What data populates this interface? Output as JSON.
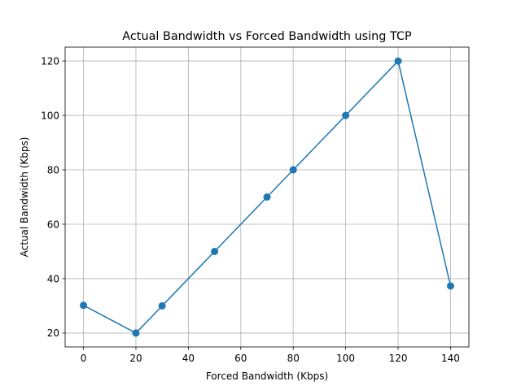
{
  "chart_data": {
    "type": "line",
    "title": "Actual Bandwidth vs Forced Bandwidth using TCP",
    "xlabel": "Forced Bandwidth (Kbps)",
    "ylabel": "Actual Bandwidth (Kbps)",
    "xlim": [
      -7,
      147
    ],
    "ylim": [
      14.9,
      125.1
    ],
    "xticks": [
      0,
      20,
      40,
      60,
      80,
      100,
      120,
      140
    ],
    "yticks": [
      20,
      40,
      60,
      80,
      100,
      120
    ],
    "grid": true,
    "marker": "circle",
    "series": [
      {
        "color": "#1f77b4",
        "x": [
          0,
          20,
          30,
          50,
          70,
          80,
          100,
          120,
          140
        ],
        "y": [
          30.2,
          20,
          30,
          50,
          70,
          80,
          100,
          120,
          37.3
        ]
      }
    ]
  }
}
